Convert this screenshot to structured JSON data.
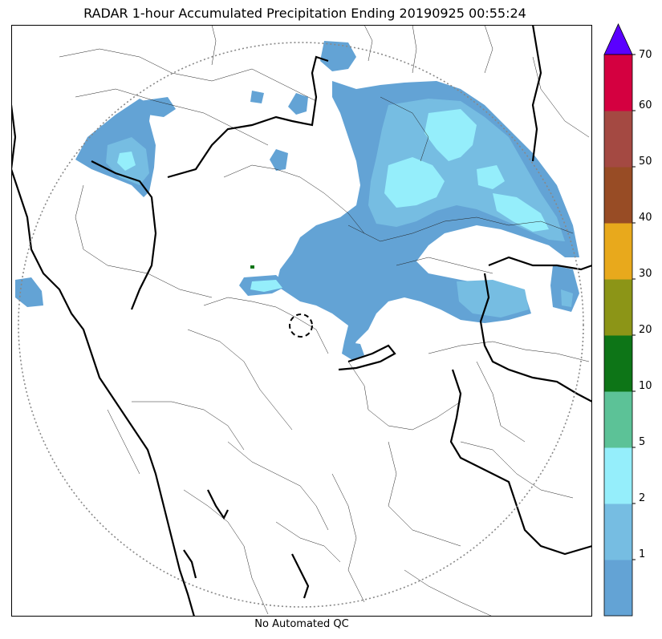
{
  "title": "RADAR 1-hour Accumulated Precipitation Ending 20190925 00:55:24",
  "caption": "No Automated QC",
  "colorbar": {
    "levels": [
      {
        "color": "#63a3d5",
        "label": ""
      },
      {
        "color": "#76bde2",
        "label": "1"
      },
      {
        "color": "#95eefb",
        "label": "2"
      },
      {
        "color": "#5cc297",
        "label": "5"
      },
      {
        "color": "#0d7517",
        "label": "10"
      },
      {
        "color": "#8c9517",
        "label": "20"
      },
      {
        "color": "#e8a91c",
        "label": "30"
      },
      {
        "color": "#984c25",
        "label": "40"
      },
      {
        "color": "#a44942",
        "label": "50"
      },
      {
        "color": "#d40040",
        "label": "60"
      }
    ],
    "top_label": "70",
    "extend_color": "#5a00ff"
  },
  "colors": {
    "light_rain": "#63a3d5",
    "moderate_rain": "#76bde2",
    "heavier_rain": "#95eefb",
    "range_ring": "#888888",
    "coastline": "#000000"
  }
}
